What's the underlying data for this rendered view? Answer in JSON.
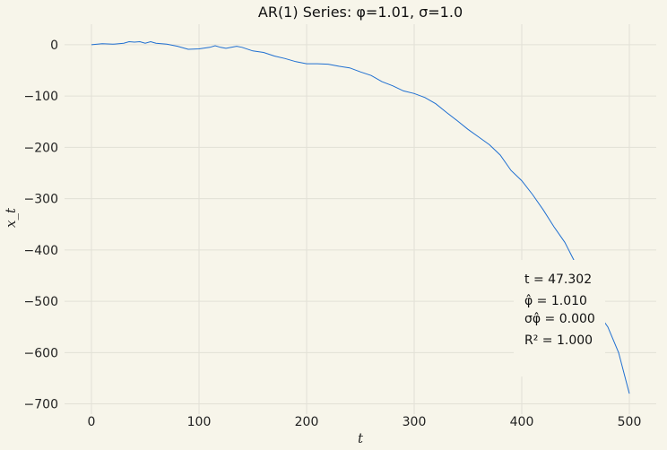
{
  "chart_data": {
    "type": "line",
    "title": "AR(1) Series: φ=1.01, σ=1.0",
    "xlabel": "t",
    "ylabel": "x_t",
    "xlim": [
      -25,
      525
    ],
    "ylim": [
      -720,
      40
    ],
    "xticks": [
      0,
      100,
      200,
      300,
      400,
      500
    ],
    "yticks": [
      0,
      -100,
      -200,
      -300,
      -400,
      -500,
      -600,
      -700
    ],
    "grid": true,
    "line_color": "#1f6fd1",
    "series": [
      {
        "points": [
          [
            0,
            0
          ],
          [
            10,
            2
          ],
          [
            20,
            1
          ],
          [
            30,
            3
          ],
          [
            35,
            6
          ],
          [
            40,
            5
          ],
          [
            45,
            6
          ],
          [
            50,
            3
          ],
          [
            55,
            6
          ],
          [
            60,
            3
          ],
          [
            70,
            1
          ],
          [
            80,
            -3
          ],
          [
            90,
            -9
          ],
          [
            100,
            -8
          ],
          [
            110,
            -5
          ],
          [
            115,
            -2
          ],
          [
            120,
            -5
          ],
          [
            125,
            -7
          ],
          [
            130,
            -5
          ],
          [
            135,
            -3
          ],
          [
            140,
            -5
          ],
          [
            150,
            -12
          ],
          [
            160,
            -15
          ],
          [
            170,
            -22
          ],
          [
            180,
            -27
          ],
          [
            190,
            -33
          ],
          [
            200,
            -37
          ],
          [
            210,
            -37
          ],
          [
            220,
            -38
          ],
          [
            230,
            -42
          ],
          [
            240,
            -45
          ],
          [
            250,
            -53
          ],
          [
            260,
            -60
          ],
          [
            270,
            -72
          ],
          [
            280,
            -80
          ],
          [
            290,
            -90
          ],
          [
            300,
            -95
          ],
          [
            310,
            -103
          ],
          [
            320,
            -115
          ],
          [
            330,
            -132
          ],
          [
            340,
            -148
          ],
          [
            350,
            -165
          ],
          [
            360,
            -180
          ],
          [
            370,
            -195
          ],
          [
            380,
            -215
          ],
          [
            390,
            -245
          ],
          [
            400,
            -265
          ],
          [
            410,
            -292
          ],
          [
            420,
            -322
          ],
          [
            430,
            -355
          ],
          [
            440,
            -385
          ],
          [
            448,
            -418
          ],
          [
            475,
            -535
          ],
          [
            480,
            -550
          ],
          [
            490,
            -600
          ],
          [
            500,
            -680
          ]
        ]
      }
    ],
    "annotation": {
      "lines": [
        "t = 47.302",
        "φ̂ = 1.010",
        "σφ̂ = 0.000",
        "R² = 1.000"
      ],
      "position": "right"
    }
  }
}
